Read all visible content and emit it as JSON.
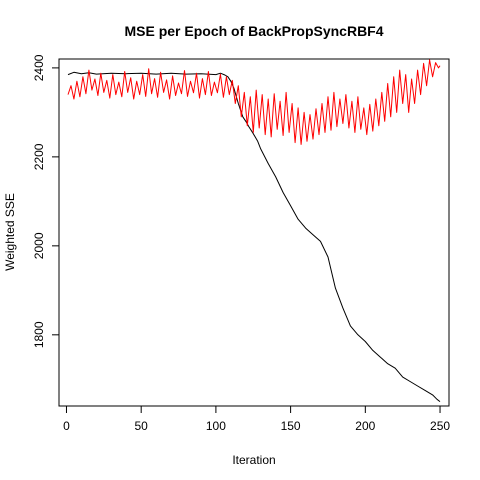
{
  "chart_data": {
    "type": "line",
    "title": "MSE per Epoch of BackPropSyncRBF4",
    "xlabel": "Iteration",
    "ylabel": "Weighted SSE",
    "xlim": [
      -5,
      256
    ],
    "ylim": [
      1640,
      2420
    ],
    "x_ticks": [
      "0",
      "50",
      "100",
      "150",
      "200",
      "250"
    ],
    "y_ticks": [
      "1800",
      "2000",
      "2200",
      "2400"
    ],
    "grid": false,
    "legend": "none",
    "series": [
      {
        "color": "#000000",
        "points": [
          [
            1,
            2385
          ],
          [
            5,
            2390
          ],
          [
            10,
            2387
          ],
          [
            15,
            2389
          ],
          [
            20,
            2386
          ],
          [
            30,
            2388
          ],
          [
            40,
            2387
          ],
          [
            50,
            2388
          ],
          [
            60,
            2386
          ],
          [
            70,
            2388
          ],
          [
            80,
            2386
          ],
          [
            90,
            2387
          ],
          [
            100,
            2385
          ],
          [
            103,
            2388
          ],
          [
            106,
            2384
          ],
          [
            108,
            2380
          ],
          [
            110,
            2370
          ],
          [
            112,
            2355
          ],
          [
            115,
            2320
          ],
          [
            118,
            2290
          ],
          [
            120,
            2280
          ],
          [
            122,
            2268
          ],
          [
            125,
            2252
          ],
          [
            128,
            2235
          ],
          [
            130,
            2218
          ],
          [
            135,
            2185
          ],
          [
            140,
            2155
          ],
          [
            145,
            2120
          ],
          [
            150,
            2090
          ],
          [
            155,
            2060
          ],
          [
            160,
            2040
          ],
          [
            165,
            2025
          ],
          [
            170,
            2010
          ],
          [
            175,
            1975
          ],
          [
            180,
            1905
          ],
          [
            185,
            1860
          ],
          [
            190,
            1820
          ],
          [
            195,
            1800
          ],
          [
            200,
            1785
          ],
          [
            205,
            1765
          ],
          [
            210,
            1750
          ],
          [
            215,
            1735
          ],
          [
            220,
            1725
          ],
          [
            225,
            1705
          ],
          [
            230,
            1695
          ],
          [
            235,
            1685
          ],
          [
            240,
            1675
          ],
          [
            245,
            1665
          ],
          [
            248,
            1655
          ],
          [
            250,
            1650
          ]
        ]
      },
      {
        "color": "#ff0000",
        "points": [
          [
            1,
            2340
          ],
          [
            3,
            2360
          ],
          [
            5,
            2330
          ],
          [
            7,
            2370
          ],
          [
            9,
            2335
          ],
          [
            11,
            2380
          ],
          [
            13,
            2342
          ],
          [
            15,
            2395
          ],
          [
            17,
            2350
          ],
          [
            19,
            2375
          ],
          [
            21,
            2338
          ],
          [
            23,
            2388
          ],
          [
            25,
            2345
          ],
          [
            27,
            2372
          ],
          [
            29,
            2332
          ],
          [
            31,
            2385
          ],
          [
            33,
            2340
          ],
          [
            35,
            2368
          ],
          [
            37,
            2335
          ],
          [
            39,
            2392
          ],
          [
            41,
            2345
          ],
          [
            43,
            2378
          ],
          [
            45,
            2330
          ],
          [
            47,
            2370
          ],
          [
            49,
            2340
          ],
          [
            51,
            2385
          ],
          [
            53,
            2336
          ],
          [
            55,
            2398
          ],
          [
            57,
            2342
          ],
          [
            59,
            2376
          ],
          [
            61,
            2334
          ],
          [
            63,
            2390
          ],
          [
            65,
            2345
          ],
          [
            67,
            2373
          ],
          [
            69,
            2330
          ],
          [
            71,
            2382
          ],
          [
            73,
            2338
          ],
          [
            75,
            2366
          ],
          [
            77,
            2342
          ],
          [
            79,
            2394
          ],
          [
            81,
            2336
          ],
          [
            83,
            2370
          ],
          [
            85,
            2344
          ],
          [
            87,
            2388
          ],
          [
            89,
            2332
          ],
          [
            91,
            2376
          ],
          [
            93,
            2340
          ],
          [
            95,
            2392
          ],
          [
            97,
            2338
          ],
          [
            99,
            2368
          ],
          [
            101,
            2344
          ],
          [
            103,
            2386
          ],
          [
            105,
            2334
          ],
          [
            107,
            2380
          ],
          [
            109,
            2340
          ],
          [
            111,
            2372
          ],
          [
            113,
            2320
          ],
          [
            115,
            2360
          ],
          [
            117,
            2290
          ],
          [
            119,
            2345
          ],
          [
            121,
            2270
          ],
          [
            123,
            2335
          ],
          [
            125,
            2255
          ],
          [
            127,
            2350
          ],
          [
            129,
            2265
          ],
          [
            131,
            2340
          ],
          [
            133,
            2250
          ],
          [
            135,
            2330
          ],
          [
            137,
            2245
          ],
          [
            139,
            2342
          ],
          [
            141,
            2262
          ],
          [
            143,
            2325
          ],
          [
            145,
            2248
          ],
          [
            147,
            2345
          ],
          [
            149,
            2255
          ],
          [
            151,
            2320
          ],
          [
            153,
            2232
          ],
          [
            155,
            2310
          ],
          [
            157,
            2228
          ],
          [
            159,
            2300
          ],
          [
            161,
            2235
          ],
          [
            163,
            2295
          ],
          [
            165,
            2240
          ],
          [
            167,
            2308
          ],
          [
            169,
            2250
          ],
          [
            171,
            2320
          ],
          [
            173,
            2255
          ],
          [
            175,
            2335
          ],
          [
            177,
            2260
          ],
          [
            179,
            2345
          ],
          [
            181,
            2268
          ],
          [
            183,
            2330
          ],
          [
            185,
            2275
          ],
          [
            187,
            2340
          ],
          [
            189,
            2265
          ],
          [
            191,
            2325
          ],
          [
            193,
            2255
          ],
          [
            195,
            2335
          ],
          [
            197,
            2262
          ],
          [
            199,
            2310
          ],
          [
            201,
            2250
          ],
          [
            203,
            2318
          ],
          [
            205,
            2258
          ],
          [
            207,
            2330
          ],
          [
            209,
            2270
          ],
          [
            211,
            2345
          ],
          [
            213,
            2280
          ],
          [
            215,
            2365
          ],
          [
            217,
            2290
          ],
          [
            219,
            2380
          ],
          [
            221,
            2300
          ],
          [
            223,
            2395
          ],
          [
            225,
            2320
          ],
          [
            227,
            2385
          ],
          [
            229,
            2300
          ],
          [
            231,
            2375
          ],
          [
            233,
            2320
          ],
          [
            235,
            2395
          ],
          [
            237,
            2340
          ],
          [
            239,
            2410
          ],
          [
            241,
            2360
          ],
          [
            243,
            2418
          ],
          [
            245,
            2380
          ],
          [
            247,
            2412
          ],
          [
            249,
            2400
          ],
          [
            250,
            2405
          ]
        ]
      }
    ]
  }
}
